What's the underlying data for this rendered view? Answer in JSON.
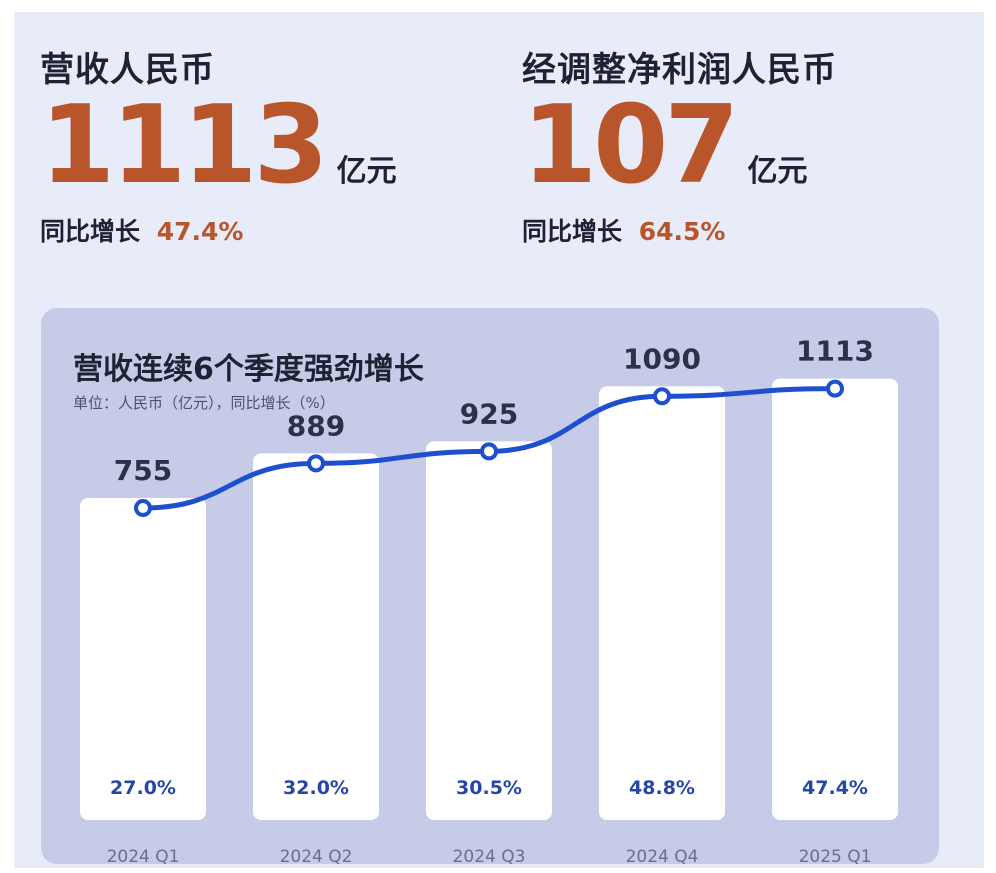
{
  "kpis": {
    "revenue": {
      "label": "营收人民币",
      "value": "1113",
      "unit": "亿元",
      "growth_label": "同比增长",
      "growth_value": "47.4%"
    },
    "profit": {
      "label": "经调整净利润人民币",
      "value": "107",
      "unit": "亿元",
      "growth_label": "同比增长",
      "growth_value": "64.5%"
    }
  },
  "colors": {
    "accent": "#b8552a",
    "line": "#1f4fd1",
    "panel": "#c6cbe8",
    "bar": "#ffffff",
    "text": "#1e2233"
  },
  "chart_data": {
    "type": "bar",
    "title": "营收连续6个季度强劲增长",
    "subtitle": "单位：人民币（亿元），同比增长（%）",
    "categories": [
      "2024 Q1",
      "2024 Q2",
      "2024 Q3",
      "2024 Q4",
      "2025 Q1"
    ],
    "series": [
      {
        "values": [
          755,
          889,
          925,
          1090,
          1113
        ]
      },
      {
        "values": [
          "27.0%",
          "32.0%",
          "30.5%",
          "48.8%",
          "47.4%"
        ]
      }
    ],
    "line_overlay": true
  }
}
